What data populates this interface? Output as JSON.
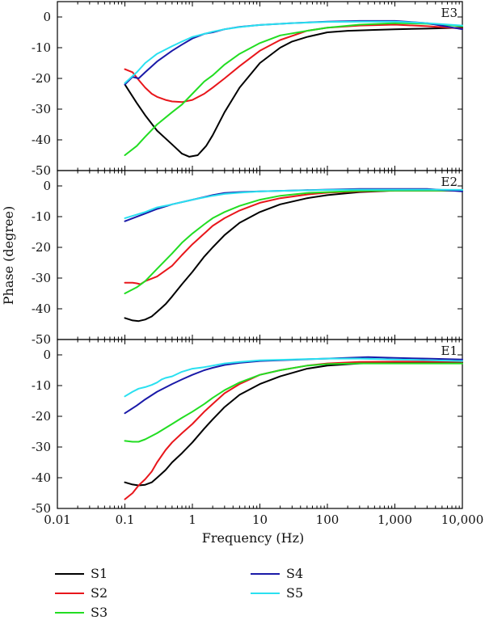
{
  "chart_data": {
    "type": "line",
    "xlabel": "Frequency (Hz)",
    "ylabel": "Phase (degree)",
    "x_scale": "log",
    "xlim": [
      0.01,
      10000
    ],
    "x_ticks": [
      {
        "value": 0.01,
        "label": "0.01"
      },
      {
        "value": 0.1,
        "label": "0.1"
      },
      {
        "value": 1,
        "label": "1"
      },
      {
        "value": 10,
        "label": "10"
      },
      {
        "value": 100,
        "label": "100"
      },
      {
        "value": 1000,
        "label": "1,000"
      },
      {
        "value": 10000,
        "label": "10,000"
      }
    ],
    "ylim": [
      -50,
      5
    ],
    "y_ticks": [
      0,
      -10,
      -20,
      -30,
      -40,
      -50
    ],
    "grid": false,
    "legend_position": "bottom",
    "legend": [
      {
        "name": "S1",
        "color": "#000000"
      },
      {
        "name": "S2",
        "color": "#e8161b"
      },
      {
        "name": "S3",
        "color": "#22dd22"
      },
      {
        "name": "S4",
        "color": "#1a1aa8"
      },
      {
        "name": "S5",
        "color": "#2ae0f0"
      }
    ],
    "panels": [
      {
        "label": "E3",
        "series": [
          {
            "name": "S1",
            "x": [
              0.1,
              0.15,
              0.2,
              0.3,
              0.5,
              0.7,
              0.9,
              1.2,
              1.6,
              2,
              3,
              5,
              10,
              20,
              30,
              50,
              100,
              200,
              500,
              1000,
              3000,
              10000
            ],
            "y": [
              -22,
              -28,
              -32,
              -37,
              -41.5,
              -44.5,
              -45.5,
              -45,
              -42,
              -38.5,
              -31,
              -23,
              -15,
              -10,
              -8,
              -6.5,
              -5,
              -4.5,
              -4.2,
              -4,
              -3.8,
              -3.5
            ]
          },
          {
            "name": "S2",
            "x": [
              0.1,
              0.13,
              0.16,
              0.2,
              0.25,
              0.3,
              0.4,
              0.5,
              0.7,
              1,
              1.5,
              2,
              3,
              5,
              10,
              20,
              50,
              100,
              300,
              1000,
              3000,
              10000
            ],
            "y": [
              -17,
              -18,
              -20.5,
              -23,
              -25,
              -26,
              -27,
              -27.5,
              -27.7,
              -27,
              -25,
              -23,
              -20,
              -16,
              -11,
              -7.5,
              -4.5,
              -3.5,
              -2.8,
              -2.5,
              -3,
              -3.8
            ]
          },
          {
            "name": "S3",
            "x": [
              0.1,
              0.15,
              0.2,
              0.3,
              0.5,
              0.7,
              1,
              1.5,
              2,
              3,
              5,
              10,
              20,
              50,
              100,
              300,
              1000,
              3000,
              10000
            ],
            "y": [
              -45,
              -42,
              -39,
              -35,
              -31,
              -28.5,
              -25,
              -21,
              -19,
              -15.5,
              -12,
              -8.5,
              -6,
              -4.5,
              -3.5,
              -2.5,
              -2,
              -2.2,
              -3
            ]
          },
          {
            "name": "S4",
            "x": [
              0.1,
              0.13,
              0.16,
              0.2,
              0.3,
              0.5,
              0.7,
              1,
              1.5,
              2,
              3,
              5,
              10,
              30,
              100,
              300,
              1000,
              3000,
              10000
            ],
            "y": [
              -22,
              -19.5,
              -20,
              -18,
              -14.5,
              -11,
              -9,
              -7,
              -5.5,
              -5,
              -4,
              -3.2,
              -2.6,
              -2,
              -1.5,
              -1.3,
              -1.3,
              -2,
              -4
            ]
          },
          {
            "name": "S5",
            "x": [
              0.1,
              0.15,
              0.2,
              0.3,
              0.5,
              0.7,
              1,
              1.5,
              2,
              3,
              5,
              10,
              30,
              100,
              300,
              1000,
              3000,
              10000
            ],
            "y": [
              -21.5,
              -18,
              -15,
              -12,
              -9.5,
              -8,
              -6.5,
              -5.5,
              -4.8,
              -4,
              -3.3,
              -2.6,
              -2,
              -1.6,
              -1.5,
              -1.5,
              -2,
              -2.8
            ]
          }
        ]
      },
      {
        "label": "E2",
        "series": [
          {
            "name": "S1",
            "x": [
              0.1,
              0.13,
              0.16,
              0.2,
              0.25,
              0.3,
              0.4,
              0.5,
              0.7,
              1,
              1.5,
              2,
              3,
              5,
              10,
              20,
              50,
              100,
              300,
              1000,
              10000
            ],
            "y": [
              -43,
              -43.8,
              -44,
              -43.5,
              -42.5,
              -41,
              -38.5,
              -36,
              -32,
              -28,
              -23,
              -20,
              -16,
              -12,
              -8.5,
              -6,
              -4,
              -3,
              -2,
              -1.5,
              -1.5
            ]
          },
          {
            "name": "S2",
            "x": [
              0.1,
              0.13,
              0.15,
              0.17,
              0.2,
              0.3,
              0.5,
              0.7,
              1,
              1.5,
              2,
              3,
              5,
              10,
              20,
              50,
              100,
              300,
              1000,
              10000
            ],
            "y": [
              -31.5,
              -31.5,
              -31.7,
              -32,
              -31,
              -29.5,
              -26,
              -22.5,
              -19,
              -15.5,
              -13,
              -10.5,
              -8,
              -5.5,
              -4,
              -2.8,
              -2.2,
              -1.8,
              -1.5,
              -1.5
            ]
          },
          {
            "name": "S3",
            "x": [
              0.1,
              0.15,
              0.2,
              0.3,
              0.5,
              0.7,
              1,
              1.5,
              2,
              3,
              5,
              10,
              20,
              50,
              100,
              300,
              1000,
              10000
            ],
            "y": [
              -35,
              -33,
              -31,
              -27,
              -22,
              -18.5,
              -15.5,
              -12.5,
              -10.5,
              -8.5,
              -6.5,
              -4.5,
              -3.2,
              -2.3,
              -2,
              -1.6,
              -1.5,
              -1.5
            ]
          },
          {
            "name": "S4",
            "x": [
              0.1,
              0.2,
              0.3,
              0.5,
              1,
              2,
              3,
              5,
              10,
              30,
              100,
              300,
              1000,
              3000,
              10000
            ],
            "y": [
              -11.5,
              -9,
              -7.5,
              -6,
              -4.5,
              -3,
              -2.3,
              -2,
              -1.8,
              -1.5,
              -1.2,
              -1,
              -1,
              -1,
              -1.8
            ]
          },
          {
            "name": "S5",
            "x": [
              0.1,
              0.2,
              0.3,
              0.5,
              1,
              2,
              3,
              5,
              10,
              30,
              100,
              300,
              1000,
              3000,
              10000
            ],
            "y": [
              -10.5,
              -8.5,
              -7,
              -6,
              -4.5,
              -3.2,
              -2.6,
              -2.2,
              -1.8,
              -1.5,
              -1.3,
              -1.2,
              -1.2,
              -1.2,
              -1.3
            ]
          }
        ]
      },
      {
        "label": "E1",
        "series": [
          {
            "name": "S1",
            "x": [
              0.1,
              0.13,
              0.16,
              0.2,
              0.25,
              0.3,
              0.4,
              0.5,
              0.7,
              1,
              1.5,
              2,
              3,
              5,
              10,
              20,
              50,
              100,
              300,
              1000,
              10000
            ],
            "y": [
              -41.5,
              -42.2,
              -42.5,
              -42.3,
              -41.5,
              -40,
              -37.5,
              -35,
              -32,
              -28.5,
              -24,
              -21,
              -17,
              -13,
              -9.5,
              -7,
              -4.5,
              -3.5,
              -2.8,
              -2.5,
              -2.5
            ]
          },
          {
            "name": "S2",
            "x": [
              0.1,
              0.13,
              0.16,
              0.2,
              0.25,
              0.3,
              0.4,
              0.5,
              0.7,
              1,
              1.5,
              2,
              3,
              5,
              10,
              20,
              50,
              100,
              300,
              1000,
              10000
            ],
            "y": [
              -47,
              -45,
              -42.5,
              -40.5,
              -38,
              -35,
              -31,
              -28.5,
              -25.5,
              -22.5,
              -18.5,
              -16,
              -12.5,
              -9.5,
              -6.5,
              -5,
              -3.5,
              -2.8,
              -2.3,
              -2.2,
              -2.2
            ]
          },
          {
            "name": "S3",
            "x": [
              0.1,
              0.13,
              0.16,
              0.2,
              0.3,
              0.5,
              0.7,
              1,
              1.5,
              2,
              3,
              5,
              10,
              20,
              50,
              100,
              300,
              1000,
              10000
            ],
            "y": [
              -28,
              -28.3,
              -28.3,
              -27.5,
              -25.5,
              -22.5,
              -20.5,
              -18.5,
              -16,
              -14,
              -11.5,
              -9,
              -6.5,
              -5,
              -3.5,
              -3,
              -2.8,
              -2.8,
              -2.8
            ]
          },
          {
            "name": "S4",
            "x": [
              0.1,
              0.15,
              0.2,
              0.3,
              0.5,
              0.7,
              1,
              1.5,
              2,
              3,
              5,
              10,
              30,
              100,
              400,
              1000,
              3000,
              10000
            ],
            "y": [
              -19,
              -16.5,
              -14.5,
              -12,
              -9.5,
              -8,
              -6.5,
              -5,
              -4.2,
              -3.3,
              -2.6,
              -2,
              -1.6,
              -1.2,
              -0.7,
              -1,
              -1.2,
              -1.5
            ]
          },
          {
            "name": "S5",
            "x": [
              0.1,
              0.13,
              0.16,
              0.2,
              0.25,
              0.3,
              0.35,
              0.4,
              0.5,
              0.7,
              1,
              1.5,
              2,
              3,
              5,
              10,
              30,
              100,
              300,
              1000,
              10000
            ],
            "y": [
              -13.5,
              -12,
              -11,
              -10.5,
              -9.8,
              -9,
              -8,
              -7.5,
              -7,
              -5.5,
              -4.5,
              -4,
              -3.5,
              -2.8,
              -2.3,
              -1.8,
              -1.5,
              -1.2,
              -1.2,
              -1.5,
              -2
            ]
          }
        ]
      }
    ]
  }
}
